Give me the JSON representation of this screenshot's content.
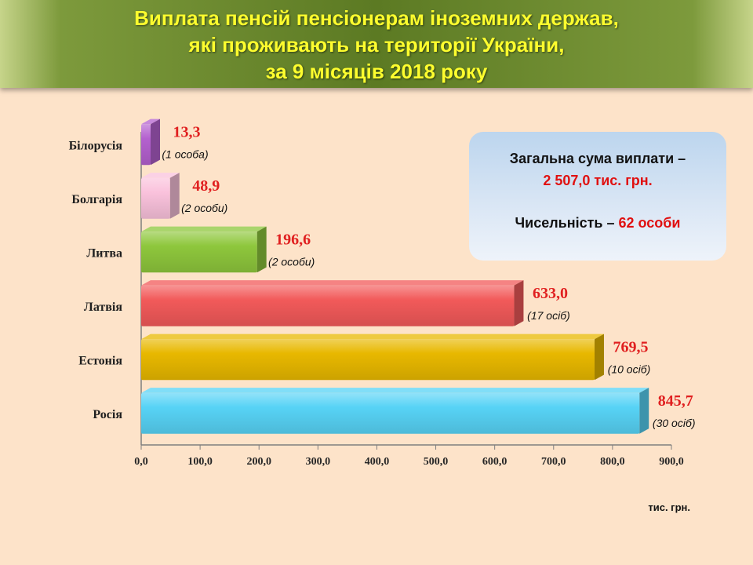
{
  "title": {
    "line1": "Виплата пенсій пенсіонерам іноземних держав,",
    "line2": "які проживають на території України,",
    "line3": "за 9 місяців 2018 року"
  },
  "info": {
    "total_label": "Загальна сума виплати –",
    "total_value": "2 507,0 тис. грн.",
    "count_label": "Чисельність –",
    "count_value": "62 особи"
  },
  "chart_data": {
    "type": "bar",
    "orientation": "horizontal",
    "categories": [
      "Білорусія",
      "Болгарія",
      "Литва",
      "Латвія",
      "Естонія",
      "Росія"
    ],
    "values": [
      13.3,
      48.9,
      196.6,
      633.0,
      769.5,
      845.7
    ],
    "value_labels": [
      "13,3",
      "48,9",
      "196,6",
      "633,0",
      "769,5",
      "845,7"
    ],
    "person_labels": [
      "(1 особа)",
      "(2 особи)",
      "(2 особи)",
      "(17 осіб)",
      "(10 осіб)",
      "(30 осіб)"
    ],
    "colors": [
      "#b461cf",
      "#fac2dc",
      "#8ec73c",
      "#f25a5a",
      "#e8b800",
      "#57d3f6"
    ],
    "xlim": [
      0,
      900
    ],
    "x_ticks": [
      "0,0",
      "100,0",
      "200,0",
      "300,0",
      "400,0",
      "500,0",
      "600,0",
      "700,0",
      "800,0",
      "900,0"
    ],
    "unit": "тис. грн.",
    "value_label_color": "#e02020"
  }
}
